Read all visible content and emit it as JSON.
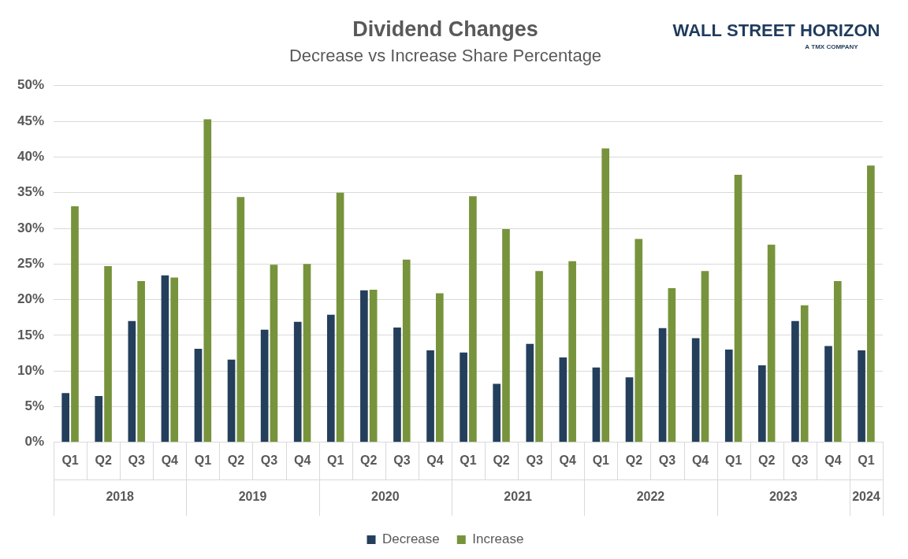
{
  "chart_data": {
    "type": "bar",
    "title": "Dividend Changes",
    "subtitle": "Decrease vs Increase Share Percentage",
    "annotations": [
      "WALL STREET HORIZON",
      "A TMX COMPANY"
    ],
    "categories": [
      "Q1",
      "Q2",
      "Q3",
      "Q4",
      "Q1",
      "Q2",
      "Q3",
      "Q4",
      "Q1",
      "Q2",
      "Q3",
      "Q4",
      "Q1",
      "Q2",
      "Q3",
      "Q4",
      "Q1",
      "Q2",
      "Q3",
      "Q4",
      "Q1",
      "Q2",
      "Q3",
      "Q4",
      "Q1"
    ],
    "category_groups": [
      {
        "label": "2018",
        "size": 4
      },
      {
        "label": "2019",
        "size": 4
      },
      {
        "label": "2020",
        "size": 4
      },
      {
        "label": "2021",
        "size": 4
      },
      {
        "label": "2022",
        "size": 4
      },
      {
        "label": "2023",
        "size": 4
      },
      {
        "label": "2024",
        "size": 1
      }
    ],
    "series": [
      {
        "name": "Decrease",
        "color": "#243f5c",
        "values": [
          6.9,
          6.5,
          17.0,
          23.4,
          13.1,
          11.6,
          15.8,
          16.9,
          17.9,
          21.3,
          16.1,
          12.9,
          12.6,
          8.2,
          13.8,
          11.9,
          10.5,
          9.1,
          16.0,
          14.6,
          13.0,
          10.8,
          17.0,
          13.5,
          12.9
        ]
      },
      {
        "name": "Increase",
        "color": "#77933c",
        "values": [
          33.1,
          24.7,
          22.6,
          23.1,
          45.3,
          34.4,
          24.9,
          25.0,
          35.0,
          21.4,
          25.6,
          20.9,
          34.5,
          29.9,
          24.0,
          25.4,
          41.2,
          28.5,
          21.6,
          24.0,
          37.5,
          27.7,
          19.2,
          22.6,
          38.8
        ]
      }
    ],
    "ylim": [
      0,
      50
    ],
    "yticks": [
      {
        "value": 0,
        "label": "0%"
      },
      {
        "value": 5,
        "label": "5%"
      },
      {
        "value": 10,
        "label": "10%"
      },
      {
        "value": 15,
        "label": "15%"
      },
      {
        "value": 20,
        "label": "20%"
      },
      {
        "value": 25,
        "label": "25%"
      },
      {
        "value": 30,
        "label": "30%"
      },
      {
        "value": 35,
        "label": "35%"
      },
      {
        "value": 40,
        "label": "40%"
      },
      {
        "value": 45,
        "label": "45%"
      },
      {
        "value": 50,
        "label": "50%"
      }
    ],
    "grid": true,
    "legend": "bottom"
  }
}
